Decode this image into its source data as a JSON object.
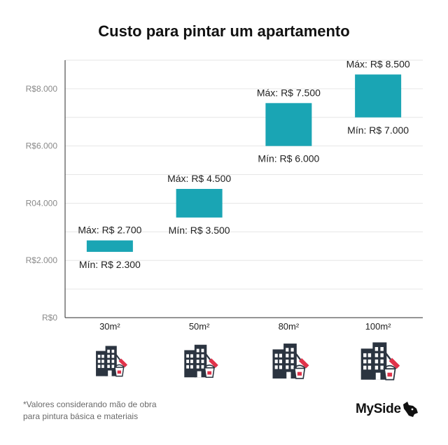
{
  "chart_data": {
    "type": "floating-bar",
    "title": "Custo para pintar um apartamento",
    "categories": [
      "30m²",
      "50m²",
      "80m²",
      "100m²"
    ],
    "series": [
      {
        "name": "Mín",
        "values": [
          2300,
          3500,
          6000,
          7000
        ]
      },
      {
        "name": "Máx",
        "values": [
          2700,
          4500,
          7500,
          8500
        ]
      }
    ],
    "min_labels": [
      "Mín: R$ 2.300",
      "Mín: R$ 3.500",
      "Mín: R$ 6.000",
      "Mín: R$ 7.000"
    ],
    "max_labels": [
      "Máx: R$ 2.700",
      "Máx: R$ 4.500",
      "Máx: R$ 7.500",
      "Máx: R$ 8.500"
    ],
    "y_ticks": [
      0,
      2000,
      4000,
      6000,
      8000
    ],
    "y_tick_labels": [
      "R$0",
      "R$2.000",
      "R04.000",
      "R$6.000",
      "R$8.000"
    ],
    "ylim": [
      0,
      9000
    ],
    "xlabel": "",
    "ylabel": "",
    "grid": true,
    "bar_color": "#1aa5b4"
  },
  "category_icons": [
    "building-paint-icon",
    "building-paint-icon",
    "building-paint-icon",
    "building-paint-icon"
  ],
  "footnote": {
    "line1": "*Valores considerando mão de obra",
    "line2": "para pintura básica e materiais"
  },
  "brand": {
    "name": "MySide",
    "icon": "dog-head-icon"
  }
}
